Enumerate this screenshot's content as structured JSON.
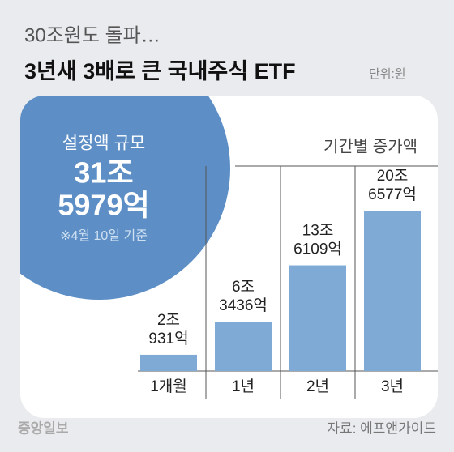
{
  "chart_data": {
    "type": "bar",
    "subtitle": "30조원도 돌파…",
    "title": "3년새 3배로 큰 국내주식 ETF",
    "unit": "단위:원",
    "callout": {
      "label": "설정액 규모",
      "lines": [
        "31조",
        "5979억"
      ],
      "note": "※4월 10일 기준"
    },
    "section_label": "기간별 증가액",
    "categories": [
      "1개월",
      "1년",
      "2년",
      "3년"
    ],
    "values": [
      20931,
      63436,
      136109,
      206577
    ],
    "value_labels": [
      [
        "2조",
        "931억"
      ],
      [
        "6조",
        "3436억"
      ],
      [
        "13조",
        "6109억"
      ],
      [
        "20조",
        "6577억"
      ]
    ],
    "color": "#80aad6",
    "circle_color": "#5d8fc6",
    "brand": "중앙일보",
    "source": "자료: 에프앤가이드"
  }
}
